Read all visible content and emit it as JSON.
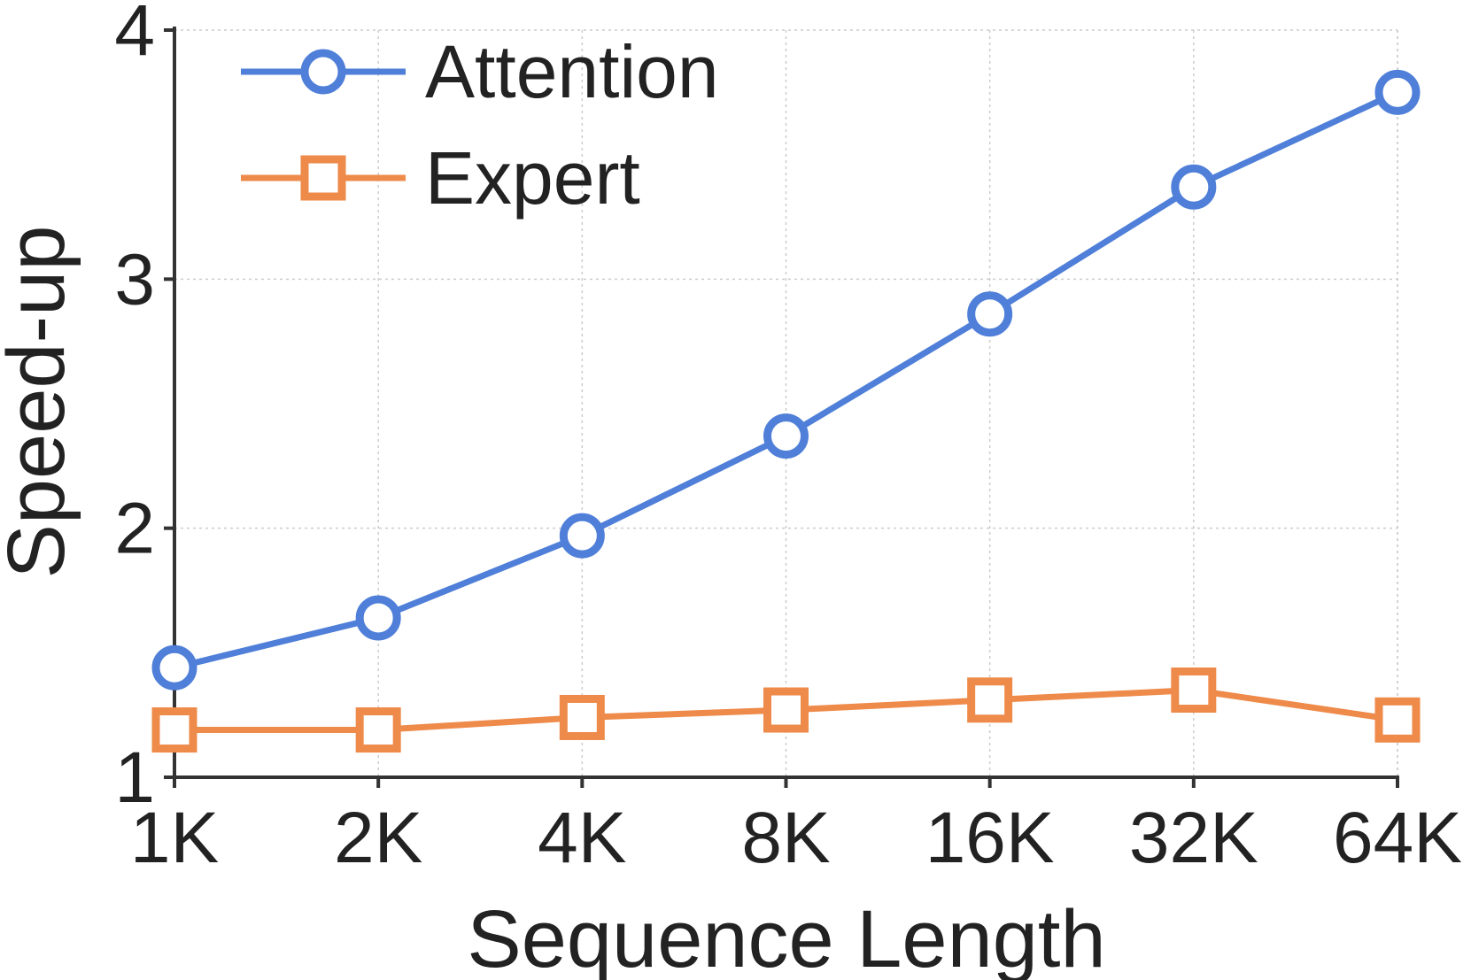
{
  "chart_data": {
    "type": "line",
    "xlabel": "Sequence Length",
    "ylabel": "Speed-up",
    "categories": [
      "1K",
      "2K",
      "4K",
      "8K",
      "16K",
      "32K",
      "64K"
    ],
    "ylim": [
      1,
      4
    ],
    "yticks": [
      "1",
      "2",
      "3",
      "4"
    ],
    "grid": true,
    "legend_position": "top-left",
    "series": [
      {
        "name": "Attention",
        "marker": "circle",
        "color": "#4f7fd8",
        "values": [
          1.44,
          1.64,
          1.97,
          2.37,
          2.86,
          3.37,
          3.75
        ]
      },
      {
        "name": "Expert",
        "marker": "square",
        "color": "#ee8a4a",
        "values": [
          1.19,
          1.19,
          1.24,
          1.27,
          1.31,
          1.35,
          1.23
        ]
      }
    ]
  }
}
